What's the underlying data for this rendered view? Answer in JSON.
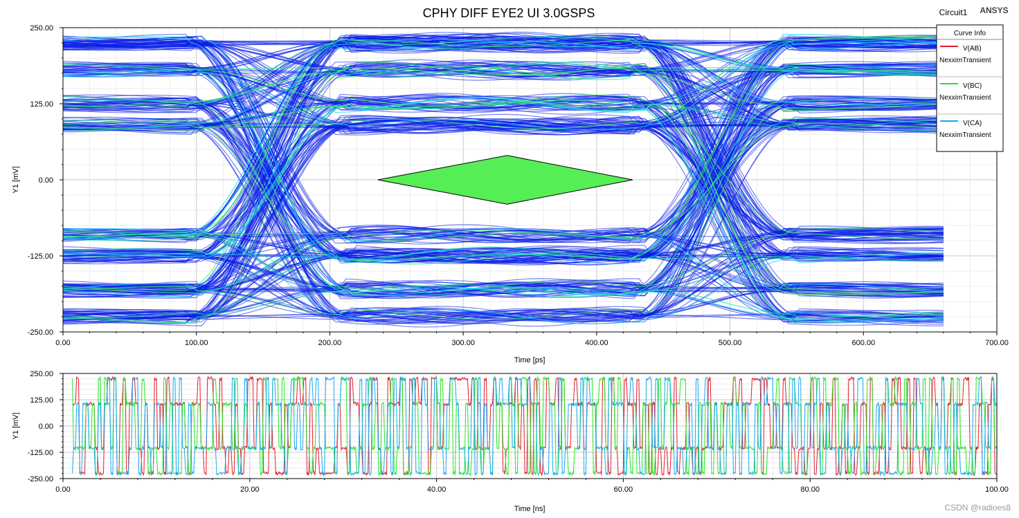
{
  "header": {
    "title": "CPHY DIFF EYE2 UI 3.0GSPS",
    "design_name": "Circuit1",
    "vendor_logo": "ANSYS"
  },
  "watermark": "CSDN @radioes8",
  "legend": {
    "title": "Curve Info",
    "entries": [
      {
        "name": "V(AB)",
        "source": "NexximTransient",
        "color": "#e01b2b"
      },
      {
        "name": "V(BC)",
        "source": "NexximTransient",
        "color": "#22e622"
      },
      {
        "name": "V(CA)",
        "source": "NexximTransient",
        "color": "#18a8f0"
      }
    ]
  },
  "chart_data": [
    {
      "type": "line",
      "subtype": "eye-diagram",
      "title": "CPHY DIFF EYE2 UI 3.0GSPS",
      "xlabel": "Time [ps]",
      "ylabel": "Y1 [mV]",
      "xlim": [
        0,
        700
      ],
      "ylim": [
        -250,
        250
      ],
      "x_ticks": [
        "0.00",
        "100.00",
        "200.00",
        "300.00",
        "400.00",
        "500.00",
        "600.00",
        "700.00"
      ],
      "y_ticks": [
        "250.00",
        "125.00",
        "0.00",
        "-125.00",
        "-250.00"
      ],
      "grid": true,
      "data_extent_x": [
        0,
        660
      ],
      "levels_mV": [
        225,
        180,
        125,
        90,
        -90,
        -125,
        -180,
        -225
      ],
      "ui_period_ps": 333.3,
      "crossings_ps": [
        155,
        488
      ],
      "trace_color": "#0a1fe6",
      "mask": {
        "points": [
          [
            236,
            0
          ],
          [
            333,
            40
          ],
          [
            427,
            0
          ],
          [
            333,
            -40
          ]
        ],
        "fill": "#55ee55",
        "stroke": "#000000"
      }
    },
    {
      "type": "line",
      "subtype": "transient",
      "xlabel": "Time [ns]",
      "ylabel": "Y1 [mV]",
      "xlim": [
        0,
        100
      ],
      "ylim": [
        -250,
        250
      ],
      "x_ticks": [
        "0.00",
        "20.00",
        "40.00",
        "60.00",
        "80.00",
        "100.00"
      ],
      "y_ticks": [
        "250.00",
        "125.00",
        "0.00",
        "-125.00",
        "-250.00"
      ],
      "grid": true,
      "series": [
        {
          "name": "V(AB)",
          "color": "#e01b2b"
        },
        {
          "name": "V(BC)",
          "color": "#22e622"
        },
        {
          "name": "V(CA)",
          "color": "#18a8f0"
        }
      ],
      "levels_mV": [
        225,
        105,
        -105,
        -225
      ],
      "symbol_period_ns": 0.3333
    }
  ]
}
